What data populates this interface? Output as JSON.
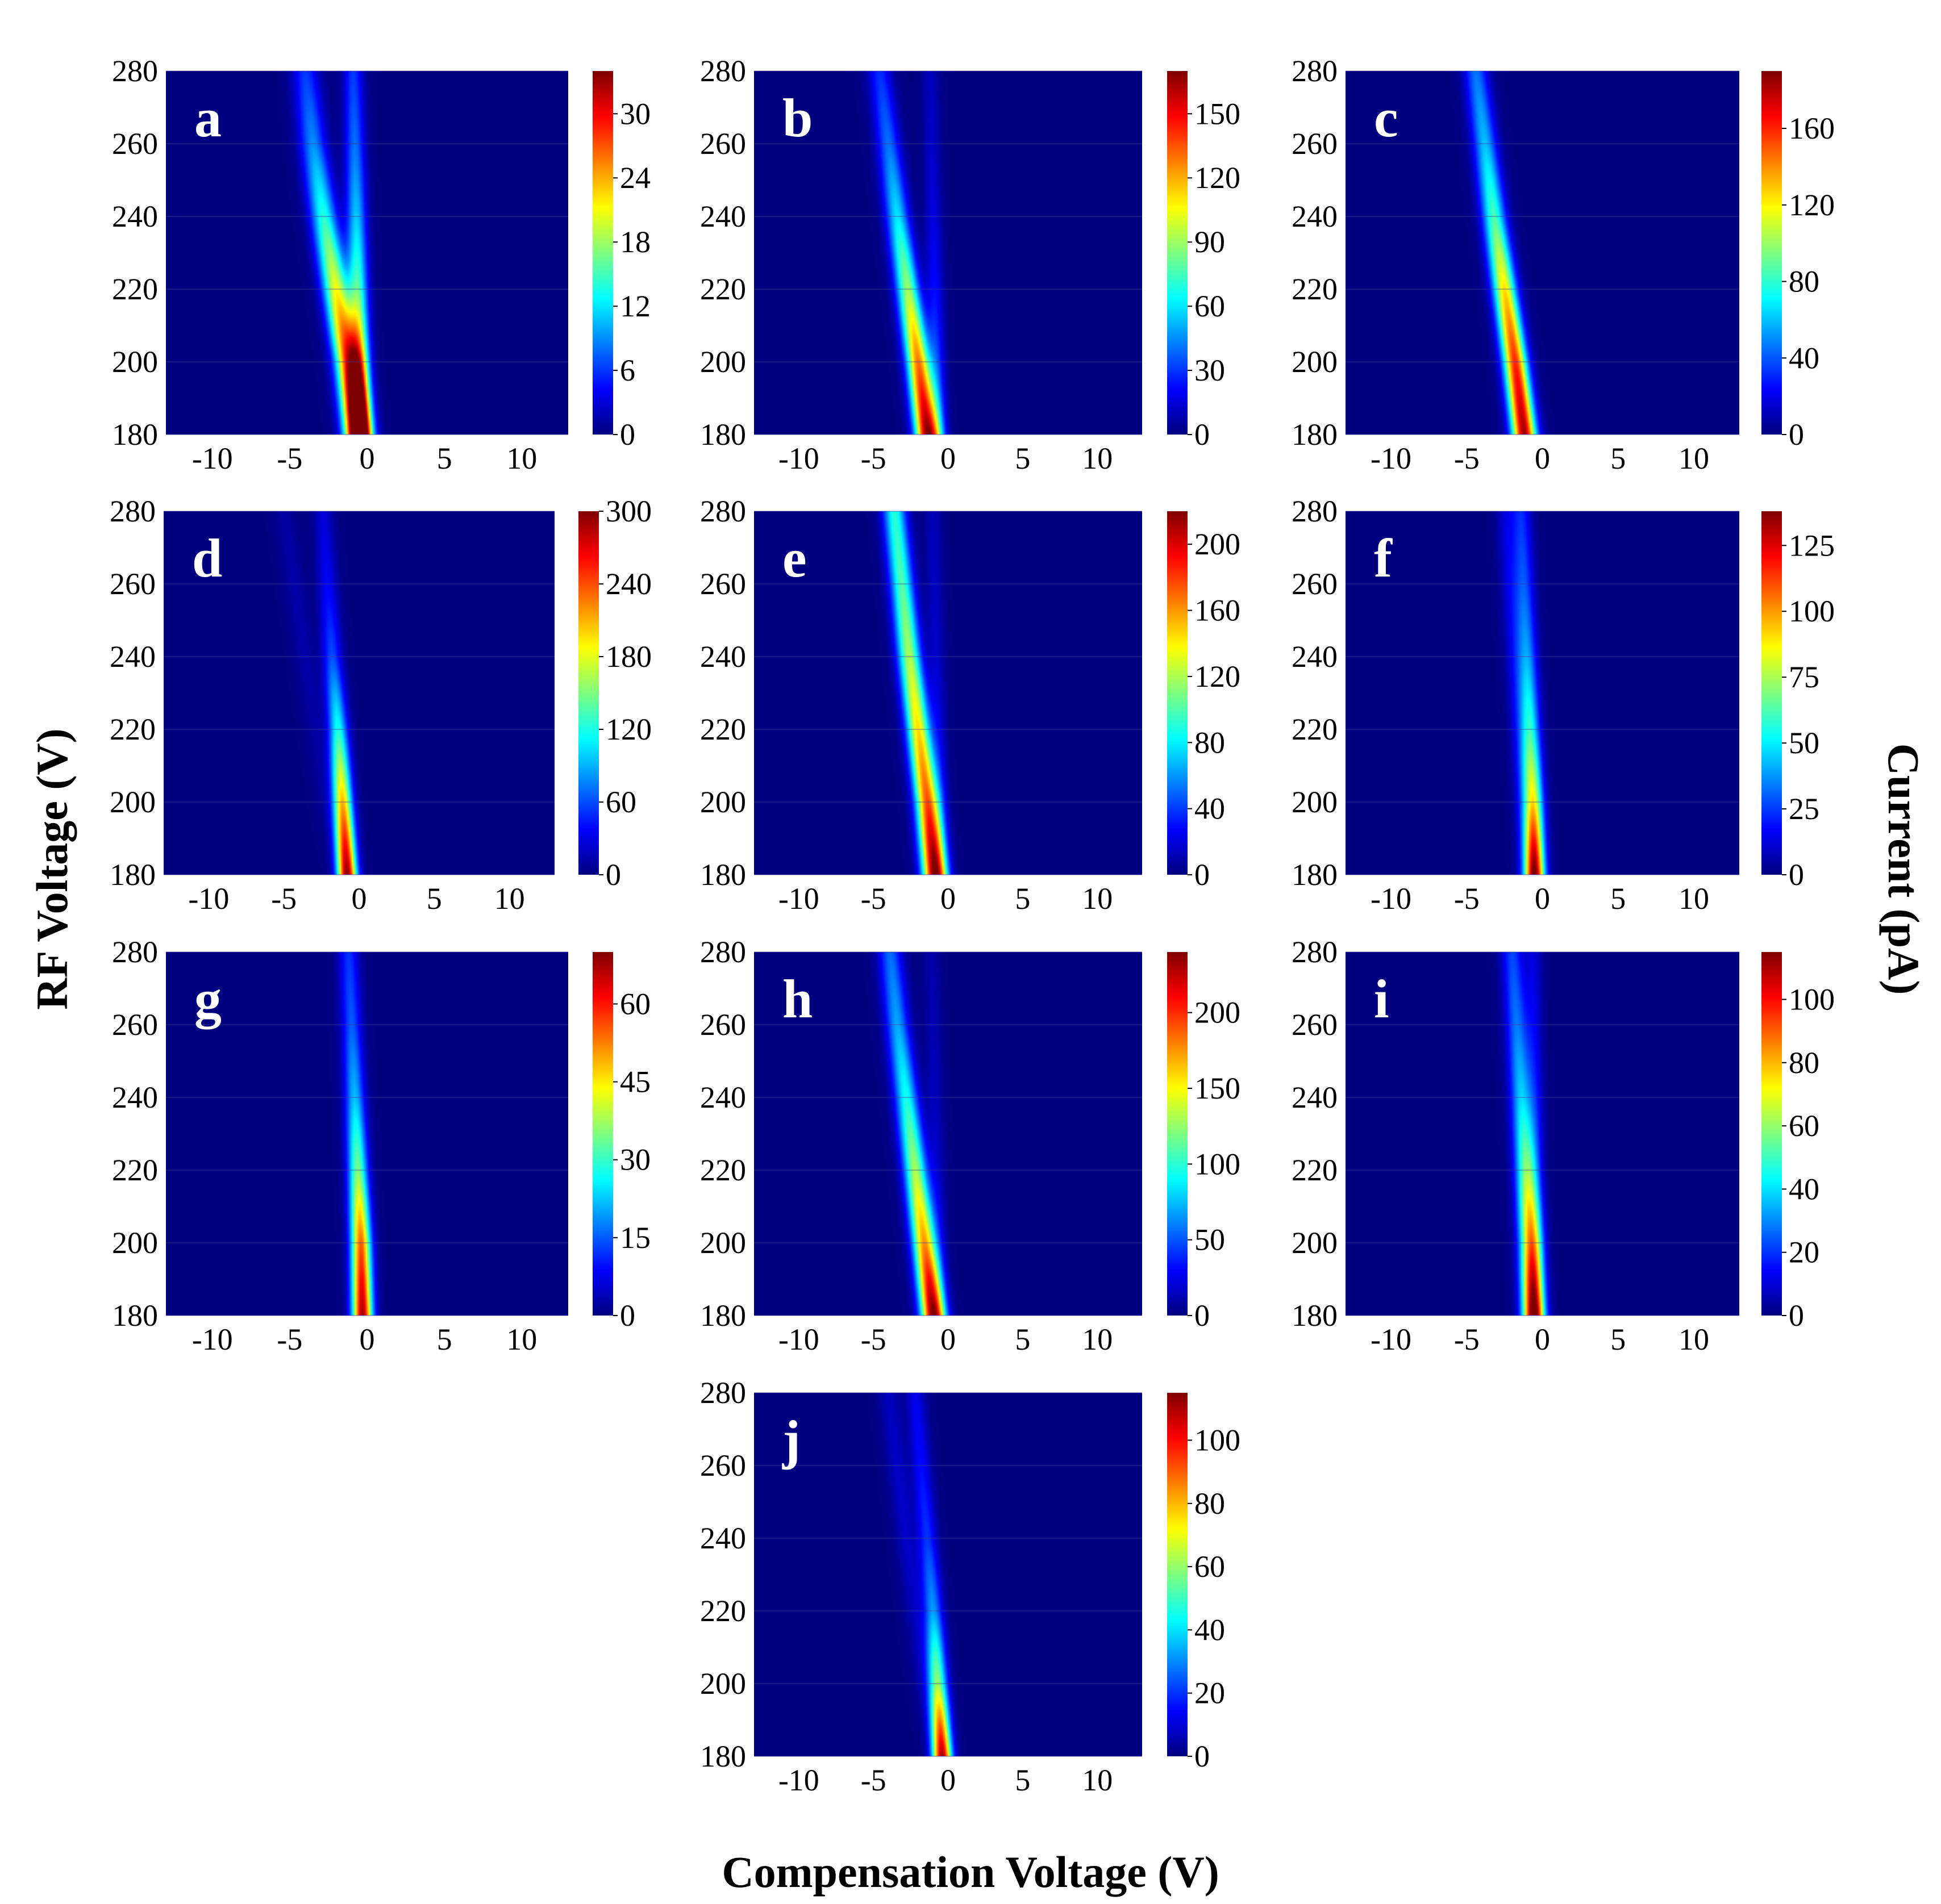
{
  "figure": {
    "ylabel": "RF Voltage (V)",
    "xlabel": "Compensation Voltage (V)",
    "colorbar_label": "Current (pA)",
    "colormap": "jet",
    "colormap_stops": [
      "#00007f",
      "#0000ff",
      "#007fff",
      "#00ffff",
      "#7fff7f",
      "#ffff00",
      "#ff7f00",
      "#ff0000",
      "#7f0000"
    ]
  },
  "chart_data": [
    {
      "type": "heatmap",
      "panel": "a",
      "xlim": [
        -13,
        13
      ],
      "ylim": [
        180,
        280
      ],
      "xticks": [
        -10,
        -5,
        0,
        5,
        10
      ],
      "xtick_labels": [
        "-10",
        "-5",
        "0",
        "5",
        "10"
      ],
      "yticks": [
        180,
        200,
        220,
        240,
        260,
        280
      ],
      "ytick_labels": [
        "180",
        "200",
        "220",
        "240",
        "260",
        "280"
      ],
      "colorbar": {
        "min": 0,
        "max": 34,
        "ticks": [
          0,
          6,
          12,
          18,
          24,
          30
        ],
        "tick_labels": [
          "0",
          "6",
          "12",
          "18",
          "24",
          "30"
        ]
      },
      "peaks": [
        {
          "rf": [
            180,
            200,
            220,
            240,
            260,
            280
          ],
          "cv": [
            -0.6,
            -1.2,
            -2.0,
            -2.8,
            -3.5,
            -4.0
          ],
          "current": [
            34,
            28,
            21,
            14,
            9,
            6
          ],
          "width": 0.6
        },
        {
          "rf": [
            180,
            200,
            220,
            240,
            260,
            280
          ],
          "cv": [
            -0.4,
            -0.5,
            -0.6,
            -0.7,
            -0.8,
            -0.9
          ],
          "current": [
            26,
            20,
            15,
            11,
            8,
            6
          ],
          "width": 0.45
        }
      ]
    },
    {
      "type": "heatmap",
      "panel": "b",
      "xlim": [
        -13,
        13
      ],
      "ylim": [
        180,
        280
      ],
      "xticks": [
        -10,
        -5,
        0,
        5,
        10
      ],
      "xtick_labels": [
        "-10",
        "-5",
        "0",
        "5",
        "10"
      ],
      "yticks": [
        180,
        200,
        220,
        240,
        260,
        280
      ],
      "ytick_labels": [
        "180",
        "200",
        "220",
        "240",
        "260",
        "280"
      ],
      "colorbar": {
        "min": 0,
        "max": 170,
        "ticks": [
          0,
          30,
          60,
          90,
          120,
          150
        ],
        "tick_labels": [
          "0",
          "30",
          "60",
          "90",
          "120",
          "150"
        ]
      },
      "peaks": [
        {
          "rf": [
            180,
            200,
            220,
            240,
            260,
            280
          ],
          "cv": [
            -1.4,
            -2.0,
            -2.7,
            -3.4,
            -4.0,
            -4.6
          ],
          "current": [
            165,
            130,
            90,
            60,
            40,
            28
          ],
          "width": 0.55
        },
        {
          "rf": [
            180,
            200,
            220,
            240,
            260,
            280
          ],
          "cv": [
            -0.7,
            -0.8,
            -0.9,
            -1.0,
            -1.1,
            -1.2
          ],
          "current": [
            40,
            30,
            22,
            16,
            12,
            10
          ],
          "width": 0.4
        }
      ]
    },
    {
      "type": "heatmap",
      "panel": "c",
      "xlim": [
        -13,
        13
      ],
      "ylim": [
        180,
        280
      ],
      "xticks": [
        -10,
        -5,
        0,
        5,
        10
      ],
      "xtick_labels": [
        "-10",
        "-5",
        "0",
        "5",
        "10"
      ],
      "yticks": [
        180,
        200,
        220,
        240,
        260,
        280
      ],
      "ytick_labels": [
        "180",
        "200",
        "220",
        "240",
        "260",
        "280"
      ],
      "colorbar": {
        "min": 0,
        "max": 190,
        "ticks": [
          0,
          40,
          80,
          120,
          160
        ],
        "tick_labels": [
          "0",
          "40",
          "80",
          "120",
          "160"
        ]
      },
      "peaks": [
        {
          "rf": [
            180,
            200,
            220,
            240,
            260,
            280
          ],
          "cv": [
            -1.2,
            -1.8,
            -2.5,
            -3.2,
            -3.8,
            -4.4
          ],
          "current": [
            185,
            160,
            125,
            85,
            60,
            45
          ],
          "width": 0.55
        }
      ]
    },
    {
      "type": "heatmap",
      "panel": "d",
      "xlim": [
        -13,
        13
      ],
      "ylim": [
        180,
        280
      ],
      "xticks": [
        -10,
        -5,
        0,
        5,
        10
      ],
      "xtick_labels": [
        "-10",
        "-5",
        "0",
        "5",
        "10"
      ],
      "yticks": [
        180,
        200,
        220,
        240,
        260,
        280
      ],
      "ytick_labels": [
        "180",
        "200",
        "220",
        "240",
        "260",
        "280"
      ],
      "colorbar": {
        "min": 0,
        "max": 300,
        "ticks": [
          0,
          60,
          120,
          180,
          240,
          300
        ],
        "tick_labels": [
          "0",
          "60",
          "120",
          "180",
          "240",
          "300"
        ]
      },
      "peaks": [
        {
          "rf": [
            180,
            200,
            220,
            240,
            260,
            280
          ],
          "cv": [
            -0.8,
            -1.1,
            -1.4,
            -1.8,
            -2.1,
            -2.4
          ],
          "current": [
            300,
            210,
            120,
            60,
            35,
            25
          ],
          "width": 0.45
        },
        {
          "rf": [
            180,
            200,
            220,
            240,
            260,
            280
          ],
          "cv": [
            -1.5,
            -2.2,
            -2.9,
            -3.6,
            -4.3,
            -5.0
          ],
          "current": [
            0,
            8,
            10,
            12,
            12,
            10
          ],
          "width": 0.5
        }
      ]
    },
    {
      "type": "heatmap",
      "panel": "e",
      "xlim": [
        -13,
        13
      ],
      "ylim": [
        180,
        280
      ],
      "xticks": [
        -10,
        -5,
        0,
        5,
        10
      ],
      "xtick_labels": [
        "-10",
        "-5",
        "0",
        "5",
        "10"
      ],
      "yticks": [
        180,
        200,
        220,
        240,
        260,
        280
      ],
      "ytick_labels": [
        "180",
        "200",
        "220",
        "240",
        "260",
        "280"
      ],
      "colorbar": {
        "min": 0,
        "max": 220,
        "ticks": [
          0,
          40,
          80,
          120,
          160,
          200
        ],
        "tick_labels": [
          "0",
          "40",
          "80",
          "120",
          "160",
          "200"
        ]
      },
      "peaks": [
        {
          "rf": [
            180,
            200,
            220,
            240,
            260,
            280
          ],
          "cv": [
            -0.9,
            -1.4,
            -2.0,
            -2.6,
            -3.1,
            -3.6
          ],
          "current": [
            215,
            175,
            145,
            120,
            100,
            90
          ],
          "width": 0.55
        },
        {
          "rf": [
            180,
            200,
            220,
            240,
            260,
            280
          ],
          "cv": [
            -0.5,
            -0.6,
            -0.7,
            -0.8,
            -0.9,
            -1.0
          ],
          "current": [
            30,
            25,
            20,
            16,
            14,
            12
          ],
          "width": 0.4
        }
      ]
    },
    {
      "type": "heatmap",
      "panel": "f",
      "xlim": [
        -13,
        13
      ],
      "ylim": [
        180,
        280
      ],
      "xticks": [
        -10,
        -5,
        0,
        5,
        10
      ],
      "xtick_labels": [
        "-10",
        "-5",
        "0",
        "5",
        "10"
      ],
      "yticks": [
        180,
        200,
        220,
        240,
        260,
        280
      ],
      "ytick_labels": [
        "180",
        "200",
        "220",
        "240",
        "260",
        "280"
      ],
      "colorbar": {
        "min": 0,
        "max": 138,
        "ticks": [
          0,
          25,
          50,
          75,
          100,
          125
        ],
        "tick_labels": [
          "0",
          "25",
          "50",
          "75",
          "100",
          "125"
        ]
      },
      "peaks": [
        {
          "rf": [
            180,
            200,
            220,
            240,
            260,
            280
          ],
          "cv": [
            -0.5,
            -0.6,
            -0.8,
            -1.0,
            -1.2,
            -1.4
          ],
          "current": [
            135,
            85,
            55,
            38,
            28,
            22
          ],
          "width": 0.45
        },
        {
          "rf": [
            180,
            200,
            220,
            240,
            260,
            280
          ],
          "cv": [
            -0.9,
            -1.2,
            -1.5,
            -1.8,
            -2.1,
            -2.4
          ],
          "current": [
            15,
            15,
            15,
            15,
            14,
            12
          ],
          "width": 0.45
        }
      ]
    },
    {
      "type": "heatmap",
      "panel": "g",
      "xlim": [
        -13,
        13
      ],
      "ylim": [
        180,
        280
      ],
      "xticks": [
        -10,
        -5,
        0,
        5,
        10
      ],
      "xtick_labels": [
        "-10",
        "-5",
        "0",
        "5",
        "10"
      ],
      "yticks": [
        180,
        200,
        220,
        240,
        260,
        280
      ],
      "ytick_labels": [
        "180",
        "200",
        "220",
        "240",
        "260",
        "280"
      ],
      "colorbar": {
        "min": 0,
        "max": 70,
        "ticks": [
          0,
          15,
          30,
          45,
          60
        ],
        "tick_labels": [
          "0",
          "15",
          "30",
          "45",
          "60"
        ]
      },
      "peaks": [
        {
          "rf": [
            180,
            200,
            220,
            240,
            260,
            280
          ],
          "cv": [
            -0.3,
            -0.4,
            -0.6,
            -0.8,
            -1.0,
            -1.2
          ],
          "current": [
            68,
            55,
            35,
            22,
            15,
            12
          ],
          "width": 0.45
        }
      ]
    },
    {
      "type": "heatmap",
      "panel": "h",
      "xlim": [
        -13,
        13
      ],
      "ylim": [
        180,
        280
      ],
      "xticks": [
        -10,
        -5,
        0,
        5,
        10
      ],
      "xtick_labels": [
        "-10",
        "-5",
        "0",
        "5",
        "10"
      ],
      "yticks": [
        180,
        200,
        220,
        240,
        260,
        280
      ],
      "ytick_labels": [
        "180",
        "200",
        "220",
        "240",
        "260",
        "280"
      ],
      "colorbar": {
        "min": 0,
        "max": 240,
        "ticks": [
          0,
          50,
          100,
          150,
          200
        ],
        "tick_labels": [
          "0",
          "50",
          "100",
          "150",
          "200"
        ]
      },
      "peaks": [
        {
          "rf": [
            180,
            200,
            220,
            240,
            260,
            280
          ],
          "cv": [
            -1.0,
            -1.6,
            -2.2,
            -2.8,
            -3.4,
            -3.9
          ],
          "current": [
            235,
            175,
            130,
            95,
            70,
            55
          ],
          "width": 0.55
        },
        {
          "rf": [
            180,
            200,
            220,
            240,
            260,
            280
          ],
          "cv": [
            -0.6,
            -0.7,
            -0.8,
            -0.9,
            -1.0,
            -1.1
          ],
          "current": [
            25,
            20,
            17,
            14,
            12,
            10
          ],
          "width": 0.4
        }
      ]
    },
    {
      "type": "heatmap",
      "panel": "i",
      "xlim": [
        -13,
        13
      ],
      "ylim": [
        180,
        280
      ],
      "xticks": [
        -10,
        -5,
        0,
        5,
        10
      ],
      "xtick_labels": [
        "-10",
        "-5",
        "0",
        "5",
        "10"
      ],
      "yticks": [
        180,
        200,
        220,
        240,
        260,
        280
      ],
      "ytick_labels": [
        "180",
        "200",
        "220",
        "240",
        "260",
        "280"
      ],
      "colorbar": {
        "min": 0,
        "max": 115,
        "ticks": [
          0,
          20,
          40,
          60,
          80,
          100
        ],
        "tick_labels": [
          "0",
          "20",
          "40",
          "60",
          "80",
          "100"
        ]
      },
      "peaks": [
        {
          "rf": [
            180,
            200,
            220,
            240,
            260,
            280
          ],
          "cv": [
            -0.6,
            -0.8,
            -1.1,
            -1.4,
            -1.7,
            -2.0
          ],
          "current": [
            110,
            80,
            55,
            38,
            28,
            22
          ],
          "width": 0.5
        },
        {
          "rf": [
            180,
            200,
            220,
            240,
            260,
            280
          ],
          "cv": [
            -0.4,
            -0.4,
            -0.5,
            -0.5,
            -0.6,
            -0.6
          ],
          "current": [
            20,
            18,
            16,
            14,
            12,
            10
          ],
          "width": 0.4
        }
      ]
    },
    {
      "type": "heatmap",
      "panel": "j",
      "xlim": [
        -13,
        13
      ],
      "ylim": [
        180,
        280
      ],
      "xticks": [
        -10,
        -5,
        0,
        5,
        10
      ],
      "xtick_labels": [
        "-10",
        "-5",
        "0",
        "5",
        "10"
      ],
      "yticks": [
        180,
        200,
        220,
        240,
        260,
        280
      ],
      "ytick_labels": [
        "180",
        "200",
        "220",
        "240",
        "260",
        "280"
      ],
      "colorbar": {
        "min": 0,
        "max": 115,
        "ticks": [
          0,
          20,
          40,
          60,
          80,
          100
        ],
        "tick_labels": [
          "0",
          "20",
          "40",
          "60",
          "80",
          "100"
        ]
      },
      "peaks": [
        {
          "rf": [
            180,
            200,
            220,
            240,
            260,
            280
          ],
          "cv": [
            -0.4,
            -0.7,
            -1.0,
            -1.4,
            -1.8,
            -2.2
          ],
          "current": [
            112,
            60,
            32,
            20,
            15,
            12
          ],
          "width": 0.45
        },
        {
          "rf": [
            180,
            200,
            220,
            240,
            260,
            280
          ],
          "cv": [
            -1.0,
            -1.6,
            -2.2,
            -2.8,
            -3.4,
            -4.0
          ],
          "current": [
            0,
            5,
            7,
            8,
            8,
            7
          ],
          "width": 0.5
        }
      ]
    }
  ]
}
